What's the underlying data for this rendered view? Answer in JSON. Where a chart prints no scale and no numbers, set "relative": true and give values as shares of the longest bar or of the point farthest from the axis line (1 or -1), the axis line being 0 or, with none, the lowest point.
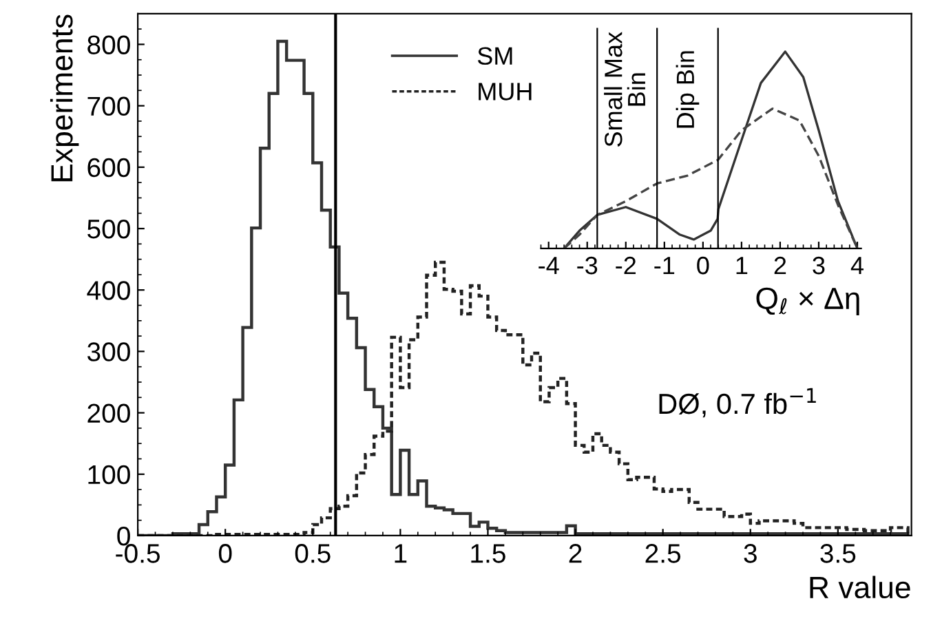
{
  "chart_data": [
    {
      "type": "histogram",
      "xlabel": "R value",
      "ylabel": "Experiments",
      "bins": [
        -0.5,
        -0.45,
        -0.4,
        -0.35,
        -0.3,
        -0.25,
        -0.2,
        -0.15,
        -0.1,
        -0.05,
        0,
        0.05,
        0.1,
        0.15,
        0.2,
        0.25,
        0.3,
        0.35,
        0.4,
        0.45,
        0.5,
        0.55,
        0.6,
        0.65,
        0.7,
        0.75,
        0.8,
        0.85,
        0.9,
        0.95,
        1.0,
        1.05,
        1.1,
        1.15,
        1.2,
        1.25,
        1.3,
        1.35,
        1.4,
        1.45,
        1.5,
        1.55,
        1.6,
        1.65,
        1.7,
        1.75,
        1.8,
        1.85,
        1.9,
        1.95,
        2.0,
        2.05,
        2.1,
        2.15,
        2.2,
        2.25,
        2.3,
        2.35,
        2.4,
        2.45,
        2.5,
        2.55,
        2.6,
        2.65,
        2.7,
        2.75,
        2.8,
        2.85,
        2.9,
        2.95,
        3.0,
        3.05,
        3.1,
        3.15,
        3.2,
        3.25,
        3.3,
        3.35,
        3.4,
        3.45,
        3.5,
        3.55,
        3.6,
        3.65,
        3.7,
        3.75,
        3.8,
        3.85,
        3.9
      ],
      "series": [
        {
          "name": "SM",
          "color": "#333333",
          "line_style": "solid",
          "values": [
            0,
            0,
            0,
            0,
            3,
            3,
            3,
            18,
            39,
            63,
            115,
            221,
            339,
            501,
            631,
            720,
            805,
            774,
            774,
            720,
            607,
            530,
            470,
            395,
            354,
            306,
            238,
            210,
            175,
            67,
            139,
            67,
            89,
            48,
            45,
            42,
            36,
            36,
            15,
            22,
            12,
            8,
            5,
            5,
            5,
            5,
            5,
            5,
            5,
            16,
            3,
            3,
            3,
            3,
            3,
            3,
            3,
            3,
            3,
            3,
            3,
            3,
            3,
            3,
            3,
            3,
            3,
            3,
            3,
            3,
            3,
            3,
            3,
            3,
            3,
            3,
            3,
            3,
            3,
            3,
            3,
            3,
            3,
            3,
            3,
            3,
            3,
            3
          ]
        },
        {
          "name": "MUH",
          "color": "#222222",
          "line_style": "dotted",
          "values": [
            0,
            0,
            0,
            0,
            0,
            0,
            0,
            0,
            0,
            2,
            2,
            2,
            2,
            2,
            2,
            2,
            2,
            2,
            2,
            5,
            18,
            29,
            44,
            48,
            65,
            102,
            132,
            162,
            170,
            323,
            241,
            319,
            356,
            424,
            445,
            401,
            398,
            361,
            407,
            390,
            356,
            334,
            327,
            327,
            278,
            297,
            218,
            241,
            256,
            215,
            147,
            136,
            166,
            147,
            136,
            117,
            91,
            95,
            95,
            76,
            72,
            75,
            75,
            54,
            43,
            43,
            43,
            31,
            31,
            35,
            20,
            24,
            24,
            24,
            24,
            20,
            13,
            13,
            13,
            13,
            13,
            10,
            10,
            8,
            8,
            8,
            13,
            13
          ]
        }
      ],
      "ref_lines": [
        {
          "axis": "x",
          "value": 0.63,
          "color": "#000000"
        }
      ],
      "xlim": [
        -0.5,
        3.92
      ],
      "ylim": [
        0,
        850
      ],
      "xticks": [
        -0.5,
        0,
        0.5,
        1,
        1.5,
        2,
        2.5,
        3,
        3.5
      ],
      "yticks": [
        0,
        100,
        200,
        300,
        400,
        500,
        600,
        700,
        800
      ],
      "legend": "top",
      "annotations": [
        "DØ, 0.7 fb$^{−1}$"
      ]
    },
    {
      "type": "line",
      "relative": true,
      "xlabel": "Q$_{ℓ}$ × Δη",
      "series": [
        {
          "color": "#333333",
          "line_style": "solid",
          "x": [
            -3.6,
            -3.2,
            -2.74,
            -2.0,
            -1.19,
            -0.6,
            -0.24,
            0.2,
            0.38,
            0.4,
            1.0,
            1.5,
            2.13,
            2.6,
            3.0,
            3.5,
            4.0
          ],
          "values": [
            0,
            0.09,
            0.17,
            0.21,
            0.15,
            0.07,
            0.045,
            0.09,
            0.15,
            0.2,
            0.55,
            0.84,
            1.0,
            0.87,
            0.6,
            0.24,
            0
          ]
        },
        {
          "color": "#444444",
          "line_style": "dashed",
          "x": [
            -3.6,
            -3.2,
            -2.74,
            -2.0,
            -1.19,
            -0.4,
            0.39,
            1.0,
            1.8,
            2.5,
            3.0,
            3.5,
            4.0
          ],
          "values": [
            0,
            0.07,
            0.17,
            0.24,
            0.33,
            0.37,
            0.45,
            0.6,
            0.71,
            0.65,
            0.47,
            0.22,
            0
          ]
        }
      ],
      "ref_lines": [
        {
          "axis": "x",
          "value": -2.74,
          "color": "#000000"
        },
        {
          "axis": "x",
          "value": -1.19,
          "color": "#000000"
        },
        {
          "axis": "x",
          "value": 0.39,
          "color": "#000000"
        }
      ],
      "xlim": [
        -4.2,
        4.1
      ],
      "xticks": [
        -4,
        -3,
        -2,
        -1,
        0,
        1,
        2,
        3,
        4
      ],
      "annotations": [
        "Small Max\nBin",
        "Dip Bin"
      ]
    }
  ]
}
